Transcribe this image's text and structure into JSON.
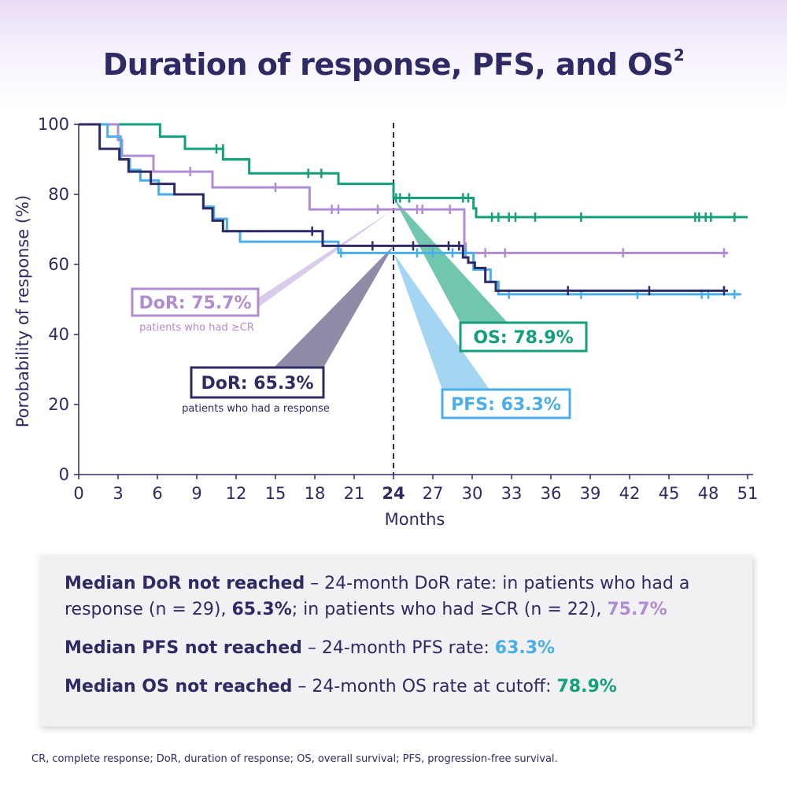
{
  "title": "Duration of response, PFS, and OS",
  "title_sup": "2",
  "colors": {
    "dor_cr": "#b08cd0",
    "dor_response": "#2e2a63",
    "pfs": "#4aaee8",
    "os": "#12a07a",
    "text": "#2e2a63"
  },
  "chart_data": {
    "type": "line",
    "subtype": "kaplan-meier step curve",
    "title": "Duration of response, PFS, and OS",
    "xlabel": "Months",
    "ylabel": "Porobability of response (%)",
    "xlim": [
      0,
      51
    ],
    "ylim": [
      0,
      100
    ],
    "xticks": [
      0,
      3,
      6,
      9,
      12,
      15,
      18,
      21,
      24,
      27,
      30,
      33,
      36,
      39,
      42,
      45,
      48,
      51
    ],
    "xtick_labels": [
      "0",
      "3",
      "6",
      "9",
      "12",
      "15",
      "18",
      "21",
      "24",
      "27",
      "30",
      "33",
      "36",
      "39",
      "42",
      "45",
      "48",
      "51"
    ],
    "highlight_xtick": 24,
    "yticks": [
      0,
      20,
      40,
      60,
      80,
      100
    ],
    "ytick_labels": [
      "0",
      "20",
      "40",
      "60",
      "80",
      "100"
    ],
    "reference_line_x": 24,
    "series": [
      {
        "name": "OS",
        "color": "#12a07a",
        "steps": [
          [
            0,
            100
          ],
          [
            6.2,
            96.5
          ],
          [
            8.1,
            93
          ],
          [
            11,
            90
          ],
          [
            13,
            86
          ],
          [
            19.8,
            83
          ],
          [
            24,
            79
          ],
          [
            30.1,
            76
          ],
          [
            30.3,
            73.5
          ],
          [
            51,
            73.5
          ]
        ],
        "censors": [
          [
            10.5,
            93
          ],
          [
            11,
            93
          ],
          [
            17.5,
            86
          ],
          [
            18.5,
            86
          ],
          [
            24.2,
            79
          ],
          [
            24.5,
            79
          ],
          [
            25.2,
            79
          ],
          [
            29.3,
            79
          ],
          [
            29.7,
            79
          ],
          [
            31.5,
            73.5
          ],
          [
            32,
            73.5
          ],
          [
            32.8,
            73.5
          ],
          [
            33.3,
            73.5
          ],
          [
            34.8,
            73.5
          ],
          [
            38.3,
            73.5
          ],
          [
            47,
            73.5
          ],
          [
            47.3,
            73.5
          ],
          [
            47.8,
            73.5
          ],
          [
            48.2,
            73.5
          ],
          [
            50,
            73.5
          ]
        ]
      },
      {
        "name": "DoR (patients who had ≥CR)",
        "color": "#b08cd0",
        "steps": [
          [
            0,
            100
          ],
          [
            3,
            95.5
          ],
          [
            3.3,
            91
          ],
          [
            5.7,
            86.5
          ],
          [
            10.2,
            82
          ],
          [
            17.6,
            75.7
          ],
          [
            29.4,
            66
          ],
          [
            29.5,
            63.3
          ],
          [
            49.5,
            63.3
          ]
        ],
        "censors": [
          [
            8.5,
            86.5
          ],
          [
            15,
            82
          ],
          [
            19.3,
            75.7
          ],
          [
            19.8,
            75.7
          ],
          [
            22.8,
            75.7
          ],
          [
            25.8,
            75.7
          ],
          [
            26.2,
            75.7
          ],
          [
            28.3,
            75.7
          ],
          [
            31,
            63.3
          ],
          [
            32.5,
            63.3
          ],
          [
            41.5,
            63.3
          ],
          [
            49.2,
            63.3
          ]
        ]
      },
      {
        "name": "PFS",
        "color": "#4aaee8",
        "steps": [
          [
            0,
            100
          ],
          [
            2.2,
            96.5
          ],
          [
            3.2,
            90
          ],
          [
            3.9,
            87
          ],
          [
            4.7,
            84
          ],
          [
            6.1,
            80
          ],
          [
            9.5,
            76.5
          ],
          [
            10.3,
            73
          ],
          [
            11.3,
            69.5
          ],
          [
            12.3,
            66.5
          ],
          [
            19.8,
            63.3
          ],
          [
            30.1,
            58.5
          ],
          [
            31.4,
            55
          ],
          [
            32,
            51.5
          ],
          [
            50.5,
            51.5
          ]
        ],
        "censors": [
          [
            20,
            63.3
          ],
          [
            25.8,
            63.3
          ],
          [
            27,
            63.3
          ],
          [
            28.5,
            63.3
          ],
          [
            29.5,
            63.3
          ],
          [
            32.8,
            51.5
          ],
          [
            38.3,
            51.5
          ],
          [
            42.6,
            51.5
          ],
          [
            47.5,
            51.5
          ],
          [
            48,
            51.5
          ],
          [
            50,
            51.5
          ]
        ]
      },
      {
        "name": "DoR (patients who had a response)",
        "color": "#2e2a63",
        "steps": [
          [
            0,
            100
          ],
          [
            1.6,
            93
          ],
          [
            3.1,
            90
          ],
          [
            3.8,
            86.5
          ],
          [
            5.5,
            83
          ],
          [
            7.3,
            80
          ],
          [
            9.5,
            76
          ],
          [
            10.2,
            72.5
          ],
          [
            11,
            69.5
          ],
          [
            18.6,
            65.3
          ],
          [
            29.3,
            62
          ],
          [
            29.7,
            60.5
          ],
          [
            30.2,
            59
          ],
          [
            31,
            55
          ],
          [
            31.8,
            52.5
          ],
          [
            49.5,
            52.5
          ]
        ],
        "censors": [
          [
            17.8,
            69.5
          ],
          [
            22.4,
            65.3
          ],
          [
            25.5,
            65.3
          ],
          [
            28.2,
            65.3
          ],
          [
            29,
            65.3
          ],
          [
            37.3,
            52.5
          ],
          [
            43.5,
            52.5
          ],
          [
            49.2,
            52.5
          ]
        ]
      }
    ],
    "annotations": [
      {
        "label": "DoR: 75.7%",
        "sublabel": "patients who had ≥CR",
        "value": 75.7,
        "x": 24,
        "series": "DoR (patients who had ≥CR)"
      },
      {
        "label": "DoR: 65.3%",
        "sublabel": "patients who had a response",
        "value": 65.3,
        "x": 24,
        "series": "DoR (patients who had a response)"
      },
      {
        "label": "OS: 78.9%",
        "sublabel": "",
        "value": 78.9,
        "x": 24,
        "series": "OS"
      },
      {
        "label": "PFS: 63.3%",
        "sublabel": "",
        "value": 63.3,
        "x": 24,
        "series": "PFS"
      }
    ]
  },
  "summary": [
    {
      "bold": "Median DoR not reached",
      "text": " – 24-month DoR rate: in patients who had a response (n = 29), ",
      "v1": "65.3%",
      "mid": "; in patients who had ≥CR (n = 22), ",
      "v2": "75.7%"
    },
    {
      "bold": "Median PFS not reached",
      "text": " – 24-month PFS rate: ",
      "v1": "63.3%"
    },
    {
      "bold": "Median OS not reached",
      "text": " – 24-month OS rate at cutoff: ",
      "v1": "78.9%"
    }
  ],
  "footnote": "CR, complete response; DoR, duration of response; OS, overall survival; PFS, progression-free survival."
}
